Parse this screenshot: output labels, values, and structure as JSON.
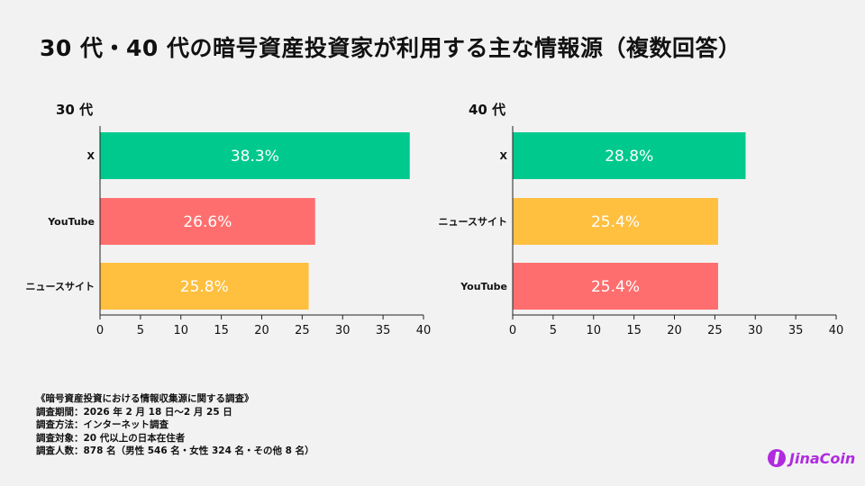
{
  "title": "30 代・40 代の暗号資産投資家が利用する主な情報源（複数回答）",
  "colors": {
    "X": "#00c98d",
    "YouTube": "#ff6e6e",
    "ニュースサイト": "#ffbf3f",
    "background": "#f2f2f2"
  },
  "chart_data": [
    {
      "type": "bar",
      "orientation": "horizontal",
      "title": "30 代",
      "categories": [
        "X",
        "YouTube",
        "ニュースサイト"
      ],
      "values": [
        38.3,
        26.6,
        25.8
      ],
      "labels": [
        "38.3%",
        "26.6%",
        "25.8%"
      ],
      "xlim": [
        0,
        40
      ],
      "xticks": [
        "0",
        "5",
        "10",
        "15",
        "20",
        "25",
        "30",
        "35",
        "40"
      ],
      "grid": false
    },
    {
      "type": "bar",
      "orientation": "horizontal",
      "title": "40 代",
      "categories": [
        "X",
        "ニュースサイト",
        "YouTube"
      ],
      "values": [
        28.8,
        25.4,
        25.4
      ],
      "labels": [
        "28.8%",
        "25.4%",
        "25.4%"
      ],
      "xlim": [
        0,
        40
      ],
      "xticks": [
        "0",
        "5",
        "10",
        "15",
        "20",
        "25",
        "30",
        "35",
        "40"
      ],
      "grid": false
    }
  ],
  "notes": [
    "《暗号資産投資における情報収集源に関する調査》",
    "調査期間：2026 年 2 月 18 日〜2 月 25 日",
    "調査方法：インターネット調査",
    "調査対象：20 代以上の日本在住者",
    "調査人数：878 名（男性 546 名・女性 324 名・その他 8 名）"
  ],
  "logo": {
    "text": "JinaCoin"
  }
}
